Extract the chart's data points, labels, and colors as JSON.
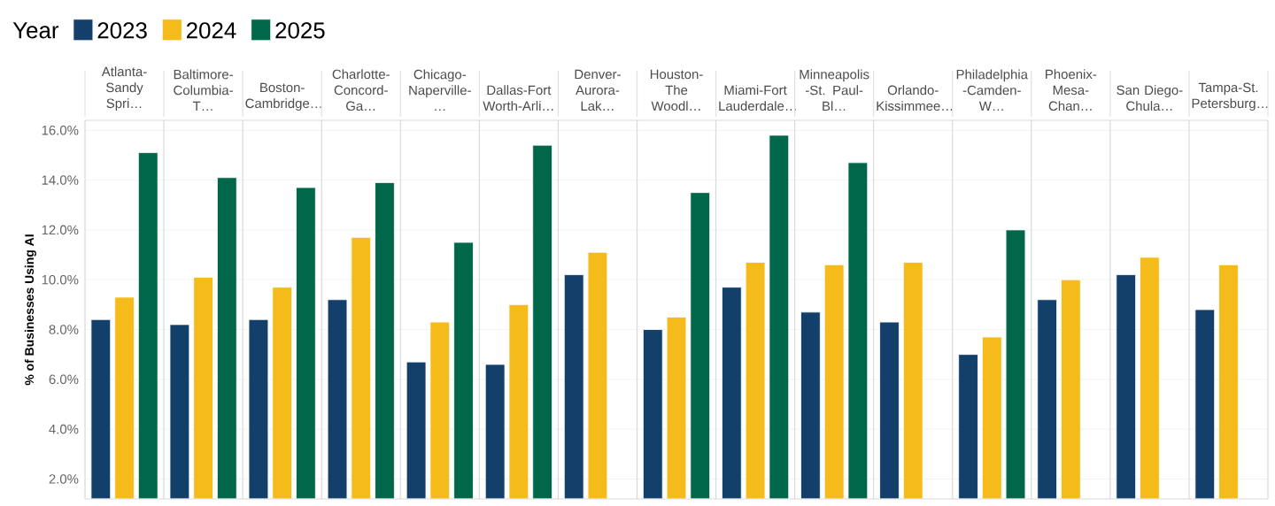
{
  "chart_data": {
    "type": "bar",
    "legend_title": "Year",
    "ylabel": "% of Businesses Using AI",
    "categories": [
      "Atlanta-Sandy Spri…",
      "Baltimore-Columbia-T…",
      "Boston-Cambridge…",
      "Charlotte-Concord-Ga…",
      "Chicago-Naperville-…",
      "Dallas-Fort Worth-Arli…",
      "Denver-Aurora-Lak…",
      "Houston-The Woodl…",
      "Miami-Fort Lauderdale…",
      "Minneapolis -St. Paul-Bl…",
      "Orlando-Kissimmee…",
      "Philadelphia -Camden-W…",
      "Phoenix-Mesa-Chan…",
      "San Diego-Chula…",
      "Tampa-St. Petersburg…"
    ],
    "series": [
      {
        "name": "2023",
        "color": "#12406b",
        "values": [
          8.4,
          8.2,
          8.4,
          9.2,
          6.7,
          6.6,
          10.2,
          8.0,
          9.7,
          8.7,
          8.3,
          7.0,
          9.2,
          10.2,
          8.8
        ]
      },
      {
        "name": "2024",
        "color": "#f5bb1a",
        "values": [
          9.3,
          10.1,
          9.7,
          11.7,
          8.3,
          9.0,
          11.1,
          8.5,
          10.7,
          10.6,
          10.7,
          7.7,
          10.0,
          10.9,
          10.6
        ]
      },
      {
        "name": "2025",
        "color": "#00674a",
        "values": [
          15.1,
          14.1,
          13.7,
          13.9,
          11.5,
          15.4,
          null,
          13.5,
          15.8,
          14.7,
          null,
          12.0,
          null,
          null,
          null
        ]
      }
    ],
    "ylim": [
      1.2,
      16.4
    ],
    "yticks": [
      {
        "value": 2,
        "label": "2.0%"
      },
      {
        "value": 4,
        "label": "4.0%"
      },
      {
        "value": 6,
        "label": "6.0%"
      },
      {
        "value": 8,
        "label": "8.0%"
      },
      {
        "value": 10,
        "label": "10.0%"
      },
      {
        "value": 12,
        "label": "12.0%"
      },
      {
        "value": 14,
        "label": "14.0%"
      },
      {
        "value": 16,
        "label": "16.0%"
      }
    ],
    "grid": "y",
    "legend": "top left"
  }
}
